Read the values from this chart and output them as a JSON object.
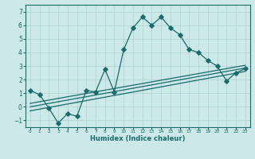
{
  "title": "",
  "xlabel": "Humidex (Indice chaleur)",
  "ylabel": "",
  "bg_color": "#cce8e8",
  "grid_color": "#b0d4d4",
  "line_color": "#1a6b6b",
  "xlim": [
    -0.5,
    23.5
  ],
  "ylim": [
    -1.5,
    7.5
  ],
  "xticks": [
    0,
    1,
    2,
    3,
    4,
    5,
    6,
    7,
    8,
    9,
    10,
    11,
    12,
    13,
    14,
    15,
    16,
    17,
    18,
    19,
    20,
    21,
    22,
    23
  ],
  "yticks": [
    -1,
    0,
    1,
    2,
    3,
    4,
    5,
    6,
    7
  ],
  "main_x": [
    0,
    1,
    2,
    3,
    4,
    5,
    6,
    7,
    8,
    9,
    10,
    11,
    12,
    13,
    14,
    15,
    16,
    17,
    18,
    19,
    20,
    21,
    22,
    23
  ],
  "main_y": [
    1.2,
    0.9,
    -0.1,
    -1.2,
    -0.5,
    -0.7,
    1.2,
    1.1,
    2.75,
    1.1,
    4.2,
    5.8,
    6.6,
    6.0,
    6.6,
    5.8,
    5.3,
    4.2,
    4.0,
    3.4,
    3.0,
    1.9,
    2.5,
    2.8
  ],
  "line1_x": [
    0,
    23
  ],
  "line1_y": [
    -0.3,
    2.6
  ],
  "line2_x": [
    0,
    23
  ],
  "line2_y": [
    0.0,
    2.85
  ],
  "line3_x": [
    0,
    23
  ],
  "line3_y": [
    0.25,
    3.05
  ]
}
